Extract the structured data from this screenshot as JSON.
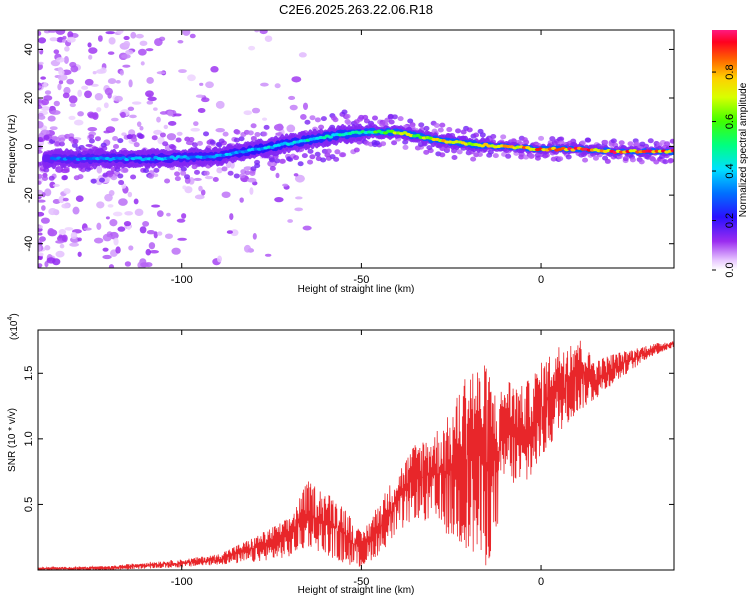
{
  "title": "C2E6.2025.263.22.06.R18",
  "colors": {
    "snr_line": "#e8262a",
    "spectrum_low": "#8a2be2",
    "spectrum_high": "#ff1a1a"
  },
  "chart_data": [
    {
      "type": "heatmap",
      "xlabel": "Height of straight line (km)",
      "ylabel": "Frequency (Hz)",
      "xlim": [
        -140,
        37
      ],
      "ylim": [
        -50,
        48
      ],
      "xticks": [
        -100,
        -50,
        0
      ],
      "yticks": [
        -40,
        -20,
        0,
        20,
        40
      ],
      "colorscale": "rainbow",
      "colorbar": {
        "label": "Normalized spectral amplitude",
        "range": [
          0,
          0.97
        ],
        "ticks": [
          0.0,
          0.2,
          0.4,
          0.6,
          0.8
        ]
      },
      "ridge": {
        "description_points": [
          {
            "x": -130,
            "freq": -5,
            "amp": 0.35
          },
          {
            "x": -110,
            "freq": -5,
            "amp": 0.4
          },
          {
            "x": -90,
            "freq": -4,
            "amp": 0.4
          },
          {
            "x": -75,
            "freq": 0,
            "amp": 0.45
          },
          {
            "x": -60,
            "freq": 4,
            "amp": 0.5
          },
          {
            "x": -50,
            "freq": 6,
            "amp": 0.55
          },
          {
            "x": -40,
            "freq": 6,
            "amp": 0.7
          },
          {
            "x": -30,
            "freq": 3,
            "amp": 0.8
          },
          {
            "x": -20,
            "freq": 1,
            "amp": 0.85
          },
          {
            "x": -10,
            "freq": 0,
            "amp": 0.85
          },
          {
            "x": 0,
            "freq": -1,
            "amp": 0.9
          },
          {
            "x": 10,
            "freq": -1,
            "amp": 0.95
          },
          {
            "x": 20,
            "freq": -2,
            "amp": 0.95
          },
          {
            "x": 36,
            "freq": -2,
            "amp": 0.95
          }
        ]
      }
    },
    {
      "type": "line",
      "xlabel": "Height of straight line (km)",
      "ylabel": "SNR (10 * v/v)",
      "y_multiplier_label": "(x10",
      "y_multiplier_exp": "4",
      "y_multiplier_close": ")",
      "xlim": [
        -140,
        37
      ],
      "ylim": [
        0,
        1.83
      ],
      "xticks": [
        -100,
        -50,
        0
      ],
      "yticks": [
        0.5,
        1.0,
        1.5
      ],
      "ytick_labels": [
        "0.5",
        "1.0",
        "1.5"
      ],
      "envelope": {
        "x": [
          -140,
          -120,
          -110,
          -100,
          -90,
          -80,
          -70,
          -65,
          -60,
          -55,
          -50,
          -45,
          -40,
          -35,
          -30,
          -25,
          -20,
          -17,
          -15,
          -12,
          -10,
          -5,
          0,
          5,
          10,
          15,
          20,
          25,
          30,
          37
        ],
        "top": [
          0.02,
          0.03,
          0.06,
          0.08,
          0.12,
          0.25,
          0.4,
          0.68,
          0.6,
          0.5,
          0.28,
          0.52,
          0.75,
          0.97,
          1.05,
          1.2,
          1.6,
          1.55,
          1.58,
          1.3,
          1.48,
          1.4,
          1.58,
          1.72,
          1.8,
          1.6,
          1.65,
          1.68,
          1.72,
          1.75
        ],
        "bottom": [
          0.0,
          0.0,
          0.01,
          0.02,
          0.04,
          0.06,
          0.1,
          0.18,
          0.12,
          0.05,
          0.02,
          0.12,
          0.28,
          0.4,
          0.35,
          0.25,
          0.15,
          0.05,
          0.02,
          0.35,
          0.7,
          0.6,
          0.85,
          1.05,
          1.2,
          1.3,
          1.42,
          1.52,
          1.62,
          1.7
        ]
      }
    }
  ]
}
